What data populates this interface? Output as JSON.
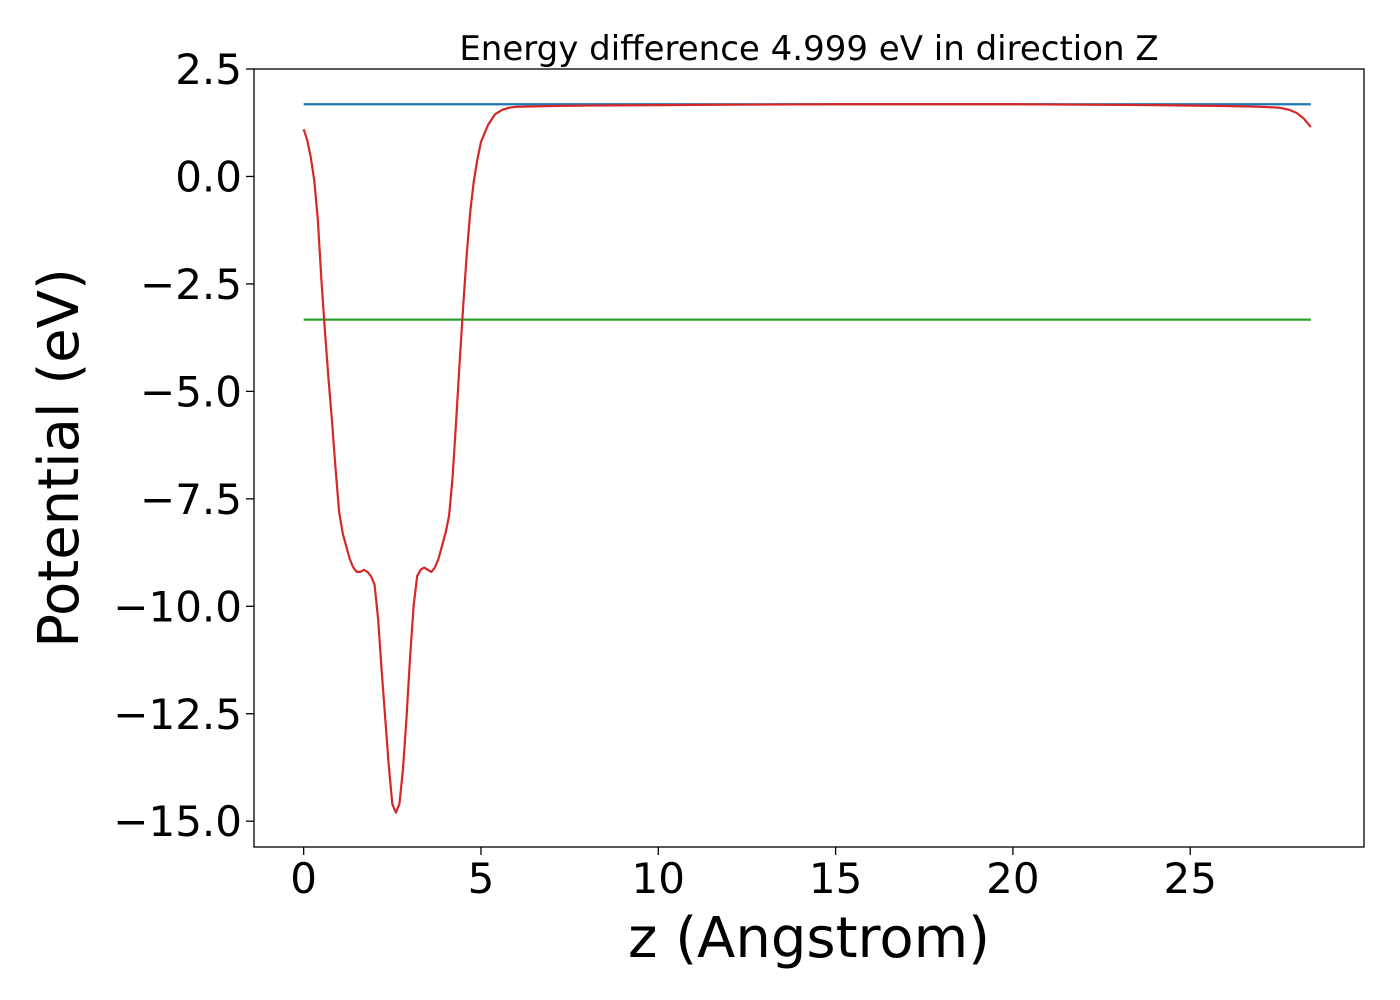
{
  "chart_data": {
    "type": "line",
    "title": "Energy difference 4.999 eV in direction Z",
    "xlabel": "z (Angstrom)",
    "ylabel": "Potential (eV)",
    "xlim": [
      -1.4,
      29.9
    ],
    "ylim": [
      -15.6,
      2.5
    ],
    "xticks": [
      0,
      5,
      10,
      15,
      20,
      25
    ],
    "xtick_labels": [
      "0",
      "5",
      "10",
      "15",
      "20",
      "25"
    ],
    "yticks": [
      2.5,
      0.0,
      -2.5,
      -5.0,
      -7.5,
      -10.0,
      -12.5,
      -15.0
    ],
    "ytick_labels": [
      "2.5",
      "0.0",
      "−2.5",
      "−5.0",
      "−7.5",
      "−10.0",
      "−12.5",
      "−15.0"
    ],
    "grid": false,
    "legend": "none",
    "series": [
      {
        "color": "#1f77b4",
        "x": [
          0.0,
          28.4
        ],
        "y": [
          1.68,
          1.68
        ]
      },
      {
        "color": "#2ca02c",
        "x": [
          0.0,
          28.4
        ],
        "y": [
          -3.33,
          -3.33
        ]
      },
      {
        "color": "#d62728",
        "x": [
          0.0,
          0.1,
          0.2,
          0.3,
          0.4,
          0.5,
          0.6,
          0.7,
          0.8,
          0.9,
          1.0,
          1.1,
          1.2,
          1.3,
          1.4,
          1.5,
          1.6,
          1.7,
          1.8,
          1.9,
          2.0,
          2.1,
          2.2,
          2.3,
          2.4,
          2.5,
          2.6,
          2.7,
          2.8,
          2.9,
          3.0,
          3.1,
          3.2,
          3.3,
          3.4,
          3.5,
          3.6,
          3.7,
          3.8,
          3.9,
          4.0,
          4.1,
          4.2,
          4.3,
          4.4,
          4.5,
          4.6,
          4.7,
          4.8,
          4.9,
          5.0,
          5.2,
          5.4,
          5.6,
          5.8,
          6.0,
          6.5,
          7.0,
          8.0,
          10.0,
          12.0,
          15.0,
          17.5,
          20.0,
          22.0,
          24.0,
          26.0,
          27.0,
          27.5,
          27.8,
          28.0,
          28.2,
          28.4
        ],
        "y": [
          1.1,
          0.85,
          0.45,
          -0.1,
          -1.0,
          -2.4,
          -3.6,
          -4.7,
          -5.7,
          -6.8,
          -7.8,
          -8.3,
          -8.6,
          -8.9,
          -9.1,
          -9.2,
          -9.2,
          -9.15,
          -9.2,
          -9.3,
          -9.5,
          -10.3,
          -11.5,
          -12.6,
          -13.7,
          -14.6,
          -14.8,
          -14.6,
          -13.8,
          -12.6,
          -11.2,
          -10.0,
          -9.3,
          -9.15,
          -9.1,
          -9.15,
          -9.2,
          -9.1,
          -8.9,
          -8.6,
          -8.3,
          -7.9,
          -7.0,
          -5.7,
          -4.3,
          -3.0,
          -1.8,
          -0.8,
          -0.1,
          0.4,
          0.8,
          1.2,
          1.45,
          1.55,
          1.6,
          1.62,
          1.63,
          1.64,
          1.65,
          1.66,
          1.67,
          1.68,
          1.68,
          1.68,
          1.67,
          1.66,
          1.64,
          1.62,
          1.6,
          1.55,
          1.48,
          1.35,
          1.15
        ]
      }
    ]
  }
}
